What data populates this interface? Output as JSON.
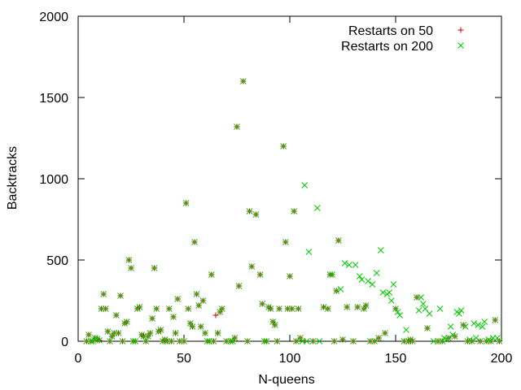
{
  "chart_data": {
    "type": "scatter",
    "xlabel": "N-queens",
    "ylabel": "Backtracks",
    "xlim": [
      0,
      200
    ],
    "ylim": [
      0,
      2000
    ],
    "xticks": [
      0,
      50,
      100,
      150,
      200
    ],
    "yticks": [
      0,
      500,
      1000,
      1500,
      2000
    ],
    "grid": false,
    "legend_position": "top-right",
    "series": [
      {
        "name": "Restarts on 50",
        "marker": "plus",
        "color": "#cc0000",
        "points": [
          [
            4,
            0
          ],
          [
            5,
            40
          ],
          [
            6,
            0
          ],
          [
            7,
            0
          ],
          [
            8,
            20
          ],
          [
            9,
            15
          ],
          [
            10,
            5
          ],
          [
            11,
            200
          ],
          [
            12,
            290
          ],
          [
            13,
            200
          ],
          [
            14,
            60
          ],
          [
            15,
            0
          ],
          [
            16,
            30
          ],
          [
            17,
            50
          ],
          [
            18,
            160
          ],
          [
            19,
            50
          ],
          [
            20,
            280
          ],
          [
            21,
            0
          ],
          [
            22,
            110
          ],
          [
            23,
            120
          ],
          [
            24,
            500
          ],
          [
            25,
            450
          ],
          [
            26,
            0
          ],
          [
            27,
            0
          ],
          [
            28,
            200
          ],
          [
            29,
            210
          ],
          [
            30,
            40
          ],
          [
            31,
            30
          ],
          [
            32,
            0
          ],
          [
            33,
            30
          ],
          [
            34,
            50
          ],
          [
            35,
            140
          ],
          [
            36,
            450
          ],
          [
            37,
            200
          ],
          [
            38,
            60
          ],
          [
            39,
            70
          ],
          [
            40,
            0
          ],
          [
            41,
            10
          ],
          [
            42,
            0
          ],
          [
            43,
            200
          ],
          [
            44,
            0
          ],
          [
            45,
            150
          ],
          [
            46,
            50
          ],
          [
            47,
            260
          ],
          [
            48,
            0
          ],
          [
            50,
            0
          ],
          [
            51,
            850
          ],
          [
            52,
            200
          ],
          [
            53,
            110
          ],
          [
            54,
            90
          ],
          [
            55,
            610
          ],
          [
            56,
            290
          ],
          [
            57,
            220
          ],
          [
            58,
            90
          ],
          [
            59,
            250
          ],
          [
            60,
            50
          ],
          [
            61,
            0
          ],
          [
            62,
            0
          ],
          [
            63,
            410
          ],
          [
            64,
            0
          ],
          [
            65,
            160
          ],
          [
            66,
            50
          ],
          [
            67,
            180
          ],
          [
            68,
            200
          ],
          [
            70,
            0
          ],
          [
            72,
            0
          ],
          [
            73,
            0
          ],
          [
            74,
            20
          ],
          [
            75,
            1320
          ],
          [
            76,
            340
          ],
          [
            78,
            1600
          ],
          [
            80,
            0
          ],
          [
            81,
            800
          ],
          [
            82,
            460
          ],
          [
            84,
            780
          ],
          [
            86,
            410
          ],
          [
            87,
            230
          ],
          [
            88,
            0
          ],
          [
            89,
            0
          ],
          [
            90,
            210
          ],
          [
            91,
            200
          ],
          [
            92,
            120
          ],
          [
            93,
            100
          ],
          [
            94,
            0
          ],
          [
            95,
            200
          ],
          [
            97,
            1200
          ],
          [
            98,
            610
          ],
          [
            99,
            200
          ],
          [
            100,
            400
          ],
          [
            101,
            200
          ],
          [
            102,
            800
          ],
          [
            103,
            0
          ],
          [
            104,
            200
          ],
          [
            105,
            20
          ],
          [
            107,
            0
          ],
          [
            111,
            0
          ],
          [
            116,
            210
          ],
          [
            118,
            200
          ],
          [
            119,
            410
          ],
          [
            120,
            410
          ],
          [
            121,
            0
          ],
          [
            122,
            310
          ],
          [
            123,
            620
          ],
          [
            125,
            10
          ],
          [
            127,
            210
          ],
          [
            130,
            0
          ],
          [
            132,
            210
          ],
          [
            135,
            200
          ],
          [
            136,
            220
          ],
          [
            138,
            0
          ],
          [
            140,
            0
          ],
          [
            142,
            20
          ],
          [
            145,
            50
          ],
          [
            150,
            200
          ],
          [
            154,
            0
          ],
          [
            156,
            0
          ],
          [
            157,
            10
          ],
          [
            158,
            0
          ],
          [
            160,
            270
          ],
          [
            165,
            80
          ],
          [
            170,
            0
          ],
          [
            172,
            0
          ],
          [
            175,
            20
          ],
          [
            178,
            30
          ],
          [
            182,
            100
          ],
          [
            184,
            0
          ],
          [
            186,
            0
          ],
          [
            190,
            0
          ],
          [
            193,
            0
          ],
          [
            195,
            0
          ],
          [
            197,
            130
          ],
          [
            199,
            0
          ]
        ]
      },
      {
        "name": "Restarts on 200",
        "marker": "x",
        "color": "#00cc00",
        "points": [
          [
            4,
            0
          ],
          [
            5,
            40
          ],
          [
            6,
            0
          ],
          [
            7,
            0
          ],
          [
            8,
            20
          ],
          [
            9,
            15
          ],
          [
            10,
            5
          ],
          [
            11,
            200
          ],
          [
            12,
            290
          ],
          [
            13,
            200
          ],
          [
            14,
            60
          ],
          [
            15,
            0
          ],
          [
            16,
            30
          ],
          [
            17,
            50
          ],
          [
            18,
            160
          ],
          [
            19,
            50
          ],
          [
            20,
            280
          ],
          [
            21,
            0
          ],
          [
            22,
            110
          ],
          [
            23,
            120
          ],
          [
            24,
            500
          ],
          [
            25,
            450
          ],
          [
            26,
            0
          ],
          [
            27,
            0
          ],
          [
            28,
            200
          ],
          [
            29,
            210
          ],
          [
            30,
            40
          ],
          [
            31,
            30
          ],
          [
            32,
            0
          ],
          [
            33,
            30
          ],
          [
            34,
            50
          ],
          [
            35,
            140
          ],
          [
            36,
            450
          ],
          [
            37,
            200
          ],
          [
            38,
            60
          ],
          [
            39,
            70
          ],
          [
            40,
            0
          ],
          [
            41,
            10
          ],
          [
            42,
            0
          ],
          [
            43,
            200
          ],
          [
            44,
            0
          ],
          [
            45,
            150
          ],
          [
            46,
            50
          ],
          [
            47,
            260
          ],
          [
            48,
            0
          ],
          [
            50,
            0
          ],
          [
            51,
            850
          ],
          [
            52,
            200
          ],
          [
            53,
            110
          ],
          [
            54,
            90
          ],
          [
            55,
            610
          ],
          [
            56,
            290
          ],
          [
            57,
            220
          ],
          [
            58,
            90
          ],
          [
            59,
            250
          ],
          [
            60,
            50
          ],
          [
            61,
            0
          ],
          [
            62,
            0
          ],
          [
            63,
            410
          ],
          [
            64,
            0
          ],
          [
            66,
            50
          ],
          [
            67,
            180
          ],
          [
            68,
            200
          ],
          [
            70,
            0
          ],
          [
            72,
            0
          ],
          [
            73,
            0
          ],
          [
            74,
            20
          ],
          [
            75,
            1320
          ],
          [
            76,
            340
          ],
          [
            78,
            1600
          ],
          [
            80,
            0
          ],
          [
            81,
            800
          ],
          [
            82,
            460
          ],
          [
            84,
            780
          ],
          [
            86,
            410
          ],
          [
            87,
            230
          ],
          [
            88,
            0
          ],
          [
            89,
            0
          ],
          [
            90,
            210
          ],
          [
            91,
            200
          ],
          [
            92,
            120
          ],
          [
            93,
            100
          ],
          [
            94,
            0
          ],
          [
            95,
            200
          ],
          [
            97,
            1200
          ],
          [
            98,
            610
          ],
          [
            99,
            200
          ],
          [
            100,
            400
          ],
          [
            101,
            200
          ],
          [
            102,
            800
          ],
          [
            103,
            0
          ],
          [
            104,
            200
          ],
          [
            105,
            20
          ],
          [
            106,
            0
          ],
          [
            107,
            960
          ],
          [
            108,
            0
          ],
          [
            109,
            550
          ],
          [
            111,
            0
          ],
          [
            113,
            820
          ],
          [
            114,
            0
          ],
          [
            116,
            210
          ],
          [
            118,
            200
          ],
          [
            119,
            410
          ],
          [
            120,
            410
          ],
          [
            121,
            0
          ],
          [
            122,
            310
          ],
          [
            123,
            620
          ],
          [
            124,
            320
          ],
          [
            125,
            10
          ],
          [
            126,
            480
          ],
          [
            127,
            210
          ],
          [
            128,
            470
          ],
          [
            130,
            0
          ],
          [
            131,
            470
          ],
          [
            132,
            210
          ],
          [
            133,
            400
          ],
          [
            134,
            380
          ],
          [
            135,
            200
          ],
          [
            136,
            220
          ],
          [
            137,
            370
          ],
          [
            138,
            0
          ],
          [
            139,
            350
          ],
          [
            140,
            0
          ],
          [
            141,
            420
          ],
          [
            142,
            20
          ],
          [
            143,
            560
          ],
          [
            144,
            300
          ],
          [
            145,
            50
          ],
          [
            146,
            290
          ],
          [
            147,
            300
          ],
          [
            148,
            250
          ],
          [
            149,
            350
          ],
          [
            150,
            200
          ],
          [
            151,
            180
          ],
          [
            152,
            160
          ],
          [
            154,
            0
          ],
          [
            155,
            70
          ],
          [
            156,
            0
          ],
          [
            157,
            10
          ],
          [
            158,
            0
          ],
          [
            160,
            270
          ],
          [
            161,
            190
          ],
          [
            162,
            270
          ],
          [
            163,
            230
          ],
          [
            164,
            200
          ],
          [
            165,
            80
          ],
          [
            166,
            170
          ],
          [
            168,
            0
          ],
          [
            170,
            0
          ],
          [
            171,
            200
          ],
          [
            172,
            0
          ],
          [
            173,
            20
          ],
          [
            174,
            10
          ],
          [
            175,
            20
          ],
          [
            176,
            90
          ],
          [
            177,
            40
          ],
          [
            178,
            30
          ],
          [
            179,
            180
          ],
          [
            180,
            170
          ],
          [
            181,
            190
          ],
          [
            182,
            100
          ],
          [
            183,
            90
          ],
          [
            184,
            0
          ],
          [
            185,
            10
          ],
          [
            186,
            0
          ],
          [
            187,
            110
          ],
          [
            188,
            20
          ],
          [
            189,
            100
          ],
          [
            190,
            0
          ],
          [
            191,
            90
          ],
          [
            192,
            120
          ],
          [
            193,
            0
          ],
          [
            194,
            10
          ],
          [
            195,
            0
          ],
          [
            196,
            20
          ],
          [
            197,
            130
          ],
          [
            198,
            20
          ],
          [
            199,
            0
          ]
        ]
      }
    ]
  }
}
